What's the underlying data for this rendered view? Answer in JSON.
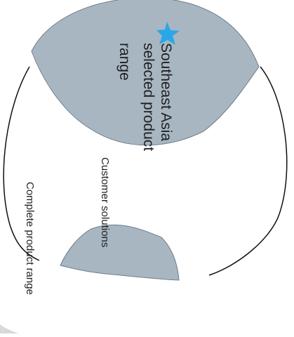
{
  "diagram": {
    "outer_label": "Complete product range",
    "middle_label": "Customer solutions",
    "selected_label_lines": [
      "Southeast Asia",
      "selected product",
      "range"
    ],
    "colors": {
      "fill": "#a8b6c2",
      "fill_stroke": "#6c7e8c",
      "line": "#111111",
      "star": "#2aa7e6",
      "text": "#1f1f1f",
      "corner": "#d9d9d9"
    },
    "star_icon": "star-icon"
  }
}
